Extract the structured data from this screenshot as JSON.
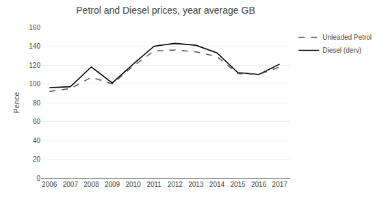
{
  "chart_data": {
    "type": "line",
    "title": "Petrol and Diesel prices, year average GB",
    "y_label": "Pence",
    "x": [
      2006,
      2007,
      2008,
      2009,
      2010,
      2011,
      2012,
      2013,
      2014,
      2015,
      2016,
      2017
    ],
    "series": [
      {
        "name": "Diesel (derv)",
        "color": "#000000",
        "line_style": "solid",
        "values": [
          96,
          97,
          118,
          101,
          121,
          140,
          143,
          141,
          133,
          112,
          110,
          121
        ]
      },
      {
        "name": "Unleaded Petrol",
        "color": "#595959",
        "line_style": "dashed",
        "values": [
          92,
          95,
          107,
          100,
          119,
          135,
          136,
          134,
          129,
          111,
          110,
          118
        ]
      }
    ],
    "xlim": [
      2005.6,
      2017.5
    ],
    "xticks": [
      2006,
      2007,
      2008,
      2009,
      2010,
      2011,
      2012,
      2013,
      2014,
      2015,
      2016,
      2017
    ],
    "ylim": [
      0,
      160
    ],
    "yticks": [
      0,
      20,
      40,
      60,
      80,
      100,
      120,
      140,
      160
    ],
    "grid": true,
    "legend": "upper right"
  }
}
